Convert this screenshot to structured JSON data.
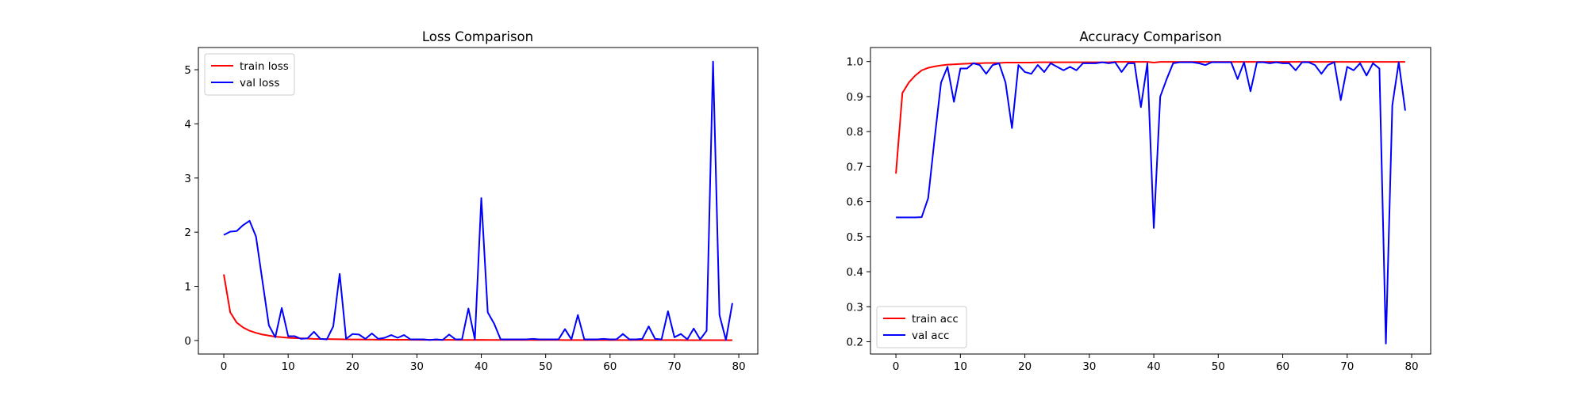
{
  "chart_data": [
    {
      "type": "line",
      "title": "Loss Comparison",
      "xlabel": "",
      "ylabel": "",
      "xlim": [
        -3.95,
        82.95
      ],
      "ylim": [
        -0.25,
        5.41
      ],
      "xticks": [
        0,
        10,
        20,
        30,
        40,
        50,
        60,
        70,
        80
      ],
      "yticks": [
        0,
        1,
        2,
        3,
        4,
        5
      ],
      "tick_format": "int",
      "legend_position": "upper-left",
      "x": [
        0,
        1,
        2,
        3,
        4,
        5,
        6,
        7,
        8,
        9,
        10,
        11,
        12,
        13,
        14,
        15,
        16,
        17,
        18,
        19,
        20,
        21,
        22,
        23,
        24,
        25,
        26,
        27,
        28,
        29,
        30,
        31,
        32,
        33,
        34,
        35,
        36,
        37,
        38,
        39,
        40,
        41,
        42,
        43,
        44,
        45,
        46,
        47,
        48,
        49,
        50,
        51,
        52,
        53,
        54,
        55,
        56,
        57,
        58,
        59,
        60,
        61,
        62,
        63,
        64,
        65,
        66,
        67,
        68,
        69,
        70,
        71,
        72,
        73,
        74,
        75,
        76,
        77,
        78,
        79
      ],
      "series": [
        {
          "name": "train loss",
          "color": "#ff0000",
          "values": [
            1.22,
            0.52,
            0.33,
            0.24,
            0.18,
            0.14,
            0.11,
            0.09,
            0.07,
            0.06,
            0.05,
            0.045,
            0.04,
            0.035,
            0.03,
            0.028,
            0.026,
            0.024,
            0.022,
            0.02,
            0.019,
            0.018,
            0.017,
            0.016,
            0.015,
            0.015,
            0.014,
            0.014,
            0.013,
            0.013,
            0.012,
            0.012,
            0.012,
            0.011,
            0.011,
            0.011,
            0.011,
            0.01,
            0.01,
            0.01,
            0.012,
            0.01,
            0.01,
            0.01,
            0.01,
            0.01,
            0.009,
            0.009,
            0.009,
            0.009,
            0.009,
            0.009,
            0.009,
            0.008,
            0.008,
            0.008,
            0.008,
            0.008,
            0.008,
            0.008,
            0.008,
            0.008,
            0.007,
            0.007,
            0.007,
            0.007,
            0.007,
            0.007,
            0.007,
            0.007,
            0.007,
            0.007,
            0.006,
            0.006,
            0.006,
            0.006,
            0.006,
            0.006,
            0.006,
            0.006
          ]
        },
        {
          "name": "val loss",
          "color": "#0000ff",
          "values": [
            1.95,
            2.01,
            2.02,
            2.13,
            2.21,
            1.92,
            1.1,
            0.28,
            0.06,
            0.6,
            0.08,
            0.08,
            0.03,
            0.04,
            0.16,
            0.03,
            0.02,
            0.26,
            1.23,
            0.03,
            0.12,
            0.11,
            0.03,
            0.13,
            0.03,
            0.05,
            0.1,
            0.05,
            0.1,
            0.02,
            0.02,
            0.02,
            0.01,
            0.02,
            0.01,
            0.11,
            0.02,
            0.02,
            0.59,
            0.02,
            2.63,
            0.52,
            0.31,
            0.02,
            0.02,
            0.02,
            0.02,
            0.02,
            0.03,
            0.02,
            0.02,
            0.02,
            0.02,
            0.21,
            0.02,
            0.47,
            0.02,
            0.02,
            0.02,
            0.03,
            0.02,
            0.02,
            0.12,
            0.02,
            0.02,
            0.03,
            0.26,
            0.03,
            0.02,
            0.54,
            0.06,
            0.12,
            0.02,
            0.22,
            0.02,
            0.18,
            5.15,
            0.47,
            0.01,
            0.69
          ]
        }
      ]
    },
    {
      "type": "line",
      "title": "Accuracy Comparison",
      "xlabel": "",
      "ylabel": "",
      "xlim": [
        -3.95,
        82.95
      ],
      "ylim": [
        0.165,
        1.04
      ],
      "xticks": [
        0,
        10,
        20,
        30,
        40,
        50,
        60,
        70,
        80
      ],
      "yticks": [
        0.2,
        0.3,
        0.4,
        0.5,
        0.6,
        0.7,
        0.8,
        0.9,
        1.0
      ],
      "tick_format": "1dp",
      "legend_position": "lower-left",
      "x": [
        0,
        1,
        2,
        3,
        4,
        5,
        6,
        7,
        8,
        9,
        10,
        11,
        12,
        13,
        14,
        15,
        16,
        17,
        18,
        19,
        20,
        21,
        22,
        23,
        24,
        25,
        26,
        27,
        28,
        29,
        30,
        31,
        32,
        33,
        34,
        35,
        36,
        37,
        38,
        39,
        40,
        41,
        42,
        43,
        44,
        45,
        46,
        47,
        48,
        49,
        50,
        51,
        52,
        53,
        54,
        55,
        56,
        57,
        58,
        59,
        60,
        61,
        62,
        63,
        64,
        65,
        66,
        67,
        68,
        69,
        70,
        71,
        72,
        73,
        74,
        75,
        76,
        77,
        78,
        79
      ],
      "series": [
        {
          "name": "train acc",
          "color": "#ff0000",
          "values": [
            0.68,
            0.91,
            0.94,
            0.96,
            0.975,
            0.982,
            0.986,
            0.989,
            0.991,
            0.992,
            0.993,
            0.994,
            0.995,
            0.995,
            0.996,
            0.996,
            0.996,
            0.997,
            0.997,
            0.997,
            0.997,
            0.997,
            0.998,
            0.998,
            0.998,
            0.998,
            0.998,
            0.998,
            0.998,
            0.998,
            0.998,
            0.998,
            0.998,
            0.998,
            0.999,
            0.999,
            0.999,
            0.999,
            0.999,
            0.999,
            0.997,
            0.999,
            0.999,
            0.999,
            0.999,
            0.999,
            0.999,
            0.999,
            0.999,
            0.999,
            0.999,
            0.999,
            0.999,
            0.999,
            0.999,
            0.999,
            0.999,
            0.999,
            0.999,
            0.999,
            0.999,
            0.999,
            0.999,
            0.999,
            0.999,
            0.999,
            0.999,
            0.999,
            0.999,
            0.999,
            0.999,
            0.999,
            0.999,
            0.999,
            0.999,
            0.999,
            0.999,
            0.999,
            0.999,
            0.999
          ]
        },
        {
          "name": "val acc",
          "color": "#0000ff",
          "values": [
            0.555,
            0.555,
            0.555,
            0.555,
            0.556,
            0.61,
            0.78,
            0.94,
            0.985,
            0.885,
            0.98,
            0.98,
            0.995,
            0.99,
            0.965,
            0.99,
            0.995,
            0.94,
            0.81,
            0.99,
            0.97,
            0.965,
            0.99,
            0.97,
            0.995,
            0.985,
            0.975,
            0.985,
            0.975,
            0.995,
            0.995,
            0.995,
            0.998,
            0.995,
            0.998,
            0.97,
            0.995,
            0.995,
            0.87,
            0.995,
            0.525,
            0.9,
            0.95,
            0.995,
            0.998,
            0.998,
            0.998,
            0.995,
            0.99,
            0.998,
            0.998,
            0.998,
            0.998,
            0.95,
            0.998,
            0.915,
            0.998,
            0.998,
            0.995,
            0.998,
            0.995,
            0.995,
            0.975,
            0.998,
            0.998,
            0.99,
            0.965,
            0.99,
            0.998,
            0.89,
            0.985,
            0.975,
            0.995,
            0.96,
            0.995,
            0.98,
            0.195,
            0.875,
            0.998,
            0.86
          ]
        }
      ]
    }
  ]
}
